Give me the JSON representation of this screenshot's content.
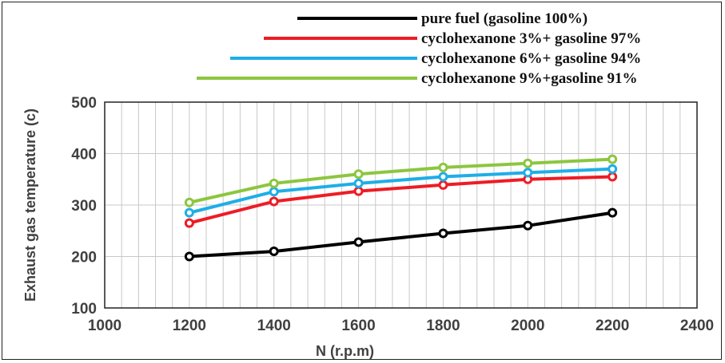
{
  "chart_data": {
    "type": "line",
    "title": "",
    "xlabel": "N (r.p.m)",
    "ylabel": "Exhaust gas temperature (c)",
    "xlim": [
      1000,
      2400
    ],
    "ylim": [
      100,
      500
    ],
    "xticks": [
      "1000",
      "1200",
      "1400",
      "1600",
      "1800",
      "2000",
      "2200",
      "2400"
    ],
    "yticks": [
      "100",
      "200",
      "300",
      "400",
      "500"
    ],
    "grid": "vertical",
    "legend_position": "top-right",
    "x": [
      1200,
      1400,
      1600,
      1800,
      2000,
      2200
    ],
    "series": [
      {
        "name": "pure fuel (gasoline 100%)",
        "color": "#000000",
        "values": [
          200,
          210,
          228,
          245,
          260,
          285
        ]
      },
      {
        "name": "cyclohexanone 3%+ gasoline 97%",
        "color": "#ee1c25",
        "values": [
          265,
          307,
          327,
          339,
          350,
          355
        ]
      },
      {
        "name": "cyclohexanone 6%+ gasoline 94%",
        "color": "#1eaee8",
        "values": [
          285,
          326,
          342,
          355,
          363,
          370
        ]
      },
      {
        "name": "cyclohexanone 9%+gasoline 91%",
        "color": "#8cc63f",
        "values": [
          305,
          342,
          360,
          373,
          381,
          389
        ]
      }
    ]
  }
}
